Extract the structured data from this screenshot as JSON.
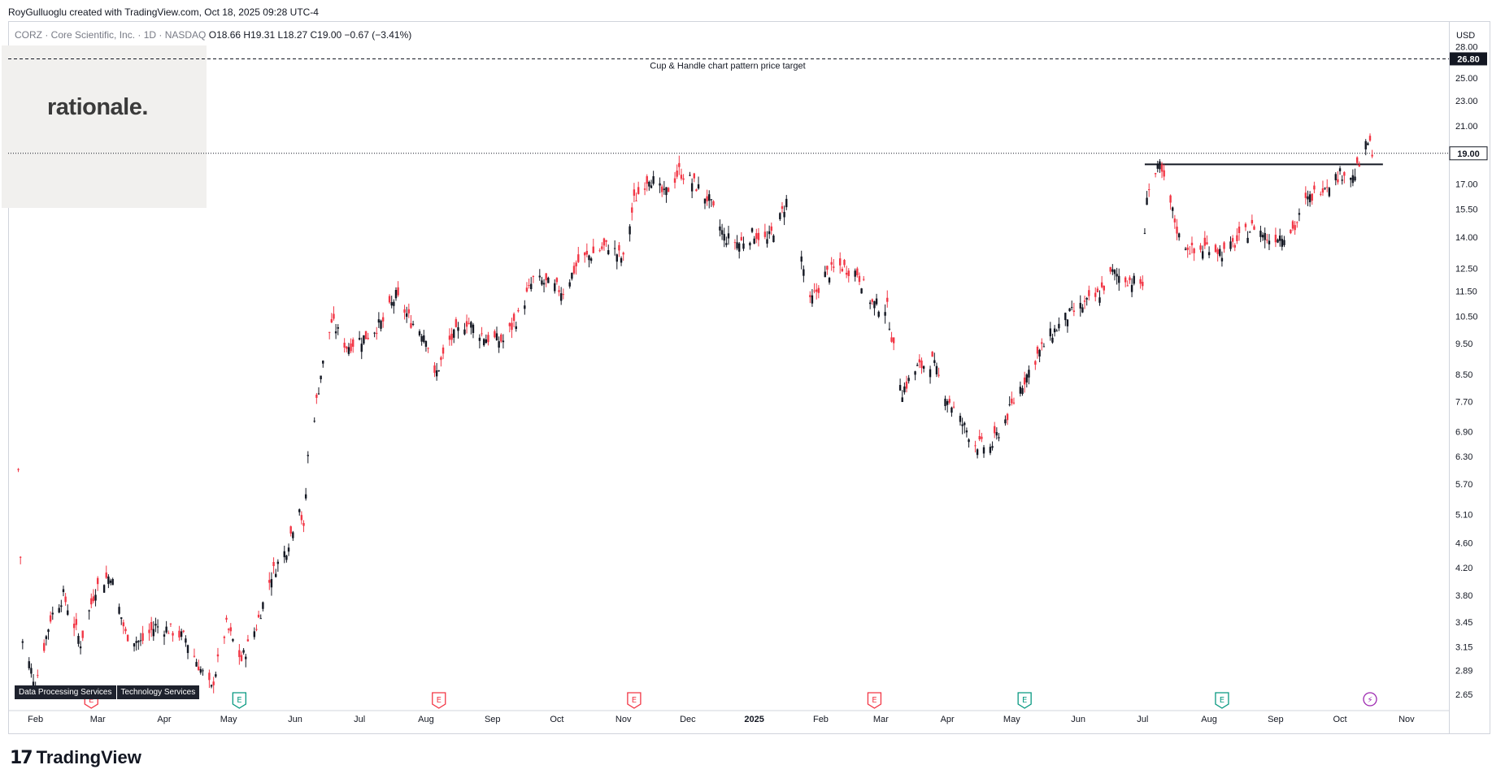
{
  "header": {
    "credit": "RoyGulluoglu created with TradingView.com, Oct 18, 2025 09:28 UTC-4",
    "symbol": "CORZ · Core Scientific, Inc. · 1D · NASDAQ",
    "ohlc": "O18.66 H19.31 L18.27 C19.00 −0.67 (−3.41%)"
  },
  "currency": "USD",
  "watermark": {
    "logo_text": "rationale."
  },
  "tags": [
    "Data Processing Services",
    "Technology Services"
  ],
  "footer": {
    "brand": "TradingView"
  },
  "colors": {
    "up": "#131722",
    "down": "#f23645",
    "earnings_red": "#f23645",
    "earnings_green": "#089981",
    "split_purple": "#9c27b0"
  },
  "chart_data": {
    "type": "candlestick",
    "y_axis": {
      "scale": "log",
      "ticks": [
        2.65,
        2.89,
        3.15,
        3.45,
        3.8,
        4.2,
        4.6,
        5.1,
        5.7,
        6.3,
        6.9,
        7.7,
        8.5,
        9.5,
        10.5,
        11.5,
        12.5,
        14.0,
        15.5,
        17.0,
        19.0,
        21.0,
        23.0,
        25.0,
        26.8,
        28.0
      ],
      "ylim": [
        2.55,
        29.5
      ]
    },
    "x_axis": {
      "labels": [
        "Feb",
        "Mar",
        "Apr",
        "May",
        "Jun",
        "Jul",
        "Aug",
        "Sep",
        "Oct",
        "Nov",
        "Dec",
        "2025",
        "Feb",
        "Mar",
        "Apr",
        "May",
        "Jun",
        "Jul",
        "Aug",
        "Sep",
        "Oct",
        "Nov"
      ],
      "bold_label": "2025"
    },
    "last_price": 19.0,
    "price_target": {
      "value": 26.8,
      "label": "Cup & Handle chart pattern price target"
    },
    "handle_resistance": 18.25,
    "path_2024": [
      [
        "2024-01-24",
        6.0
      ],
      [
        "2024-01-26",
        3.2
      ],
      [
        "2024-02-01",
        2.75
      ],
      [
        "2024-02-08",
        3.5
      ],
      [
        "2024-02-14",
        3.8
      ],
      [
        "2024-02-22",
        3.2
      ],
      [
        "2024-02-29",
        3.9
      ],
      [
        "2024-03-07",
        4.1
      ],
      [
        "2024-03-14",
        3.3
      ],
      [
        "2024-03-21",
        3.2
      ],
      [
        "2024-03-28",
        3.4
      ],
      [
        "2024-04-04",
        3.35
      ],
      [
        "2024-04-11",
        3.25
      ],
      [
        "2024-04-18",
        2.9
      ],
      [
        "2024-04-23",
        2.7
      ],
      [
        "2024-04-30",
        3.4
      ],
      [
        "2024-05-07",
        3.0
      ],
      [
        "2024-05-14",
        3.4
      ],
      [
        "2024-05-21",
        4.1
      ],
      [
        "2024-05-28",
        4.5
      ],
      [
        "2024-06-03",
        5.3
      ],
      [
        "2024-06-05",
        4.8
      ],
      [
        "2024-06-07",
        6.3
      ],
      [
        "2024-06-13",
        8.5
      ],
      [
        "2024-06-18",
        10.3
      ],
      [
        "2024-06-25",
        9.4
      ],
      [
        "2024-07-05",
        9.8
      ],
      [
        "2024-07-12",
        10.3
      ],
      [
        "2024-07-18",
        11.3
      ],
      [
        "2024-07-25",
        10.3
      ],
      [
        "2024-08-01",
        9.8
      ],
      [
        "2024-08-05",
        8.4
      ],
      [
        "2024-08-12",
        9.6
      ],
      [
        "2024-08-20",
        10.3
      ],
      [
        "2024-08-29",
        9.7
      ],
      [
        "2024-09-06",
        9.6
      ],
      [
        "2024-09-13",
        10.5
      ],
      [
        "2024-09-20",
        12.0
      ],
      [
        "2024-09-27",
        11.8
      ],
      [
        "2024-10-04",
        11.5
      ],
      [
        "2024-10-11",
        12.8
      ],
      [
        "2024-10-18",
        13.2
      ],
      [
        "2024-10-25",
        13.6
      ],
      [
        "2024-11-01",
        12.9
      ],
      [
        "2024-11-06",
        16.0
      ],
      [
        "2024-11-13",
        17.5
      ],
      [
        "2024-11-20",
        16.3
      ],
      [
        "2024-11-27",
        17.8
      ],
      [
        "2024-12-04",
        17.0
      ],
      [
        "2024-12-11",
        16.0
      ],
      [
        "2024-12-18",
        14.0
      ],
      [
        "2024-12-25",
        13.7
      ],
      [
        "2025-01-01",
        14.2
      ],
      [
        "2025-01-07",
        13.8
      ],
      [
        "2025-01-13",
        15.0
      ],
      [
        "2025-01-17",
        16.3
      ]
    ],
    "path_2025": [
      [
        "2025-01-23",
        13.0
      ],
      [
        "2025-01-27",
        11.0
      ],
      [
        "2025-02-03",
        12.2
      ],
      [
        "2025-02-10",
        12.6
      ],
      [
        "2025-02-18",
        12.3
      ],
      [
        "2025-02-25",
        11.0
      ],
      [
        "2025-03-04",
        10.8
      ],
      [
        "2025-03-07",
        9.3
      ],
      [
        "2025-03-11",
        8.0
      ],
      [
        "2025-03-18",
        8.7
      ],
      [
        "2025-03-25",
        8.9
      ],
      [
        "2025-04-01",
        7.8
      ],
      [
        "2025-04-08",
        7.1
      ],
      [
        "2025-04-14",
        6.6
      ],
      [
        "2025-04-21",
        6.5
      ],
      [
        "2025-04-28",
        7.2
      ],
      [
        "2025-05-05",
        8.1
      ],
      [
        "2025-05-12",
        9.0
      ],
      [
        "2025-05-19",
        9.8
      ],
      [
        "2025-05-27",
        10.5
      ],
      [
        "2025-06-03",
        10.9
      ],
      [
        "2025-06-10",
        11.3
      ],
      [
        "2025-06-17",
        12.3
      ],
      [
        "2025-06-24",
        12.0
      ],
      [
        "2025-07-01",
        11.8
      ],
      [
        "2025-07-03",
        16.5
      ],
      [
        "2025-07-09",
        18.1
      ],
      [
        "2025-07-14",
        15.8
      ],
      [
        "2025-07-18",
        14.0
      ],
      [
        "2025-07-25",
        13.2
      ],
      [
        "2025-08-01",
        13.6
      ],
      [
        "2025-08-08",
        13.2
      ],
      [
        "2025-08-15",
        13.9
      ],
      [
        "2025-08-22",
        14.6
      ],
      [
        "2025-08-29",
        13.9
      ],
      [
        "2025-09-05",
        14.2
      ],
      [
        "2025-09-10",
        14.5
      ],
      [
        "2025-09-15",
        15.9
      ],
      [
        "2025-09-22",
        16.8
      ],
      [
        "2025-09-29",
        17.4
      ],
      [
        "2025-10-03",
        17.8
      ],
      [
        "2025-10-07",
        17.4
      ],
      [
        "2025-10-10",
        18.2
      ],
      [
        "2025-10-14",
        19.8
      ],
      [
        "2025-10-17",
        19.0
      ]
    ],
    "events": [
      {
        "date": "2024-02-27",
        "kind": "E",
        "color": "earnings_red"
      },
      {
        "date": "2024-05-06",
        "kind": "E",
        "color": "earnings_green"
      },
      {
        "date": "2024-08-07",
        "kind": "E",
        "color": "earnings_red"
      },
      {
        "date": "2024-11-06",
        "kind": "E",
        "color": "earnings_red"
      },
      {
        "date": "2025-02-26",
        "kind": "E",
        "color": "earnings_red"
      },
      {
        "date": "2025-05-07",
        "kind": "E",
        "color": "earnings_green"
      },
      {
        "date": "2025-08-07",
        "kind": "E",
        "color": "earnings_green"
      },
      {
        "date": "2025-10-15",
        "kind": "⚡",
        "color": "split_purple"
      }
    ]
  }
}
